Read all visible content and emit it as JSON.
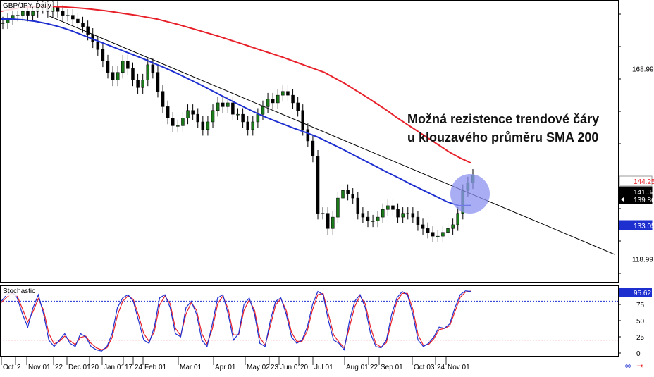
{
  "window": {
    "title": "GBP/JPY, Daily"
  },
  "annotation": {
    "lines": [
      "Možná rezistence trendové čáry",
      "u klouzavého průměru SMA 200"
    ]
  },
  "price_labels": [
    {
      "value": "144.25",
      "color": "#e8202a"
    },
    {
      "value": "141.34",
      "color": "#000000"
    },
    {
      "value": "139.86",
      "color": "#ffffff"
    },
    {
      "value": "133.05",
      "color": "#1e2fd0"
    }
  ],
  "price_axis_ticks": [
    "168.99",
    "118.99"
  ],
  "stoch_panel": {
    "title": "Stochastic",
    "current": "95.62",
    "ticks": [
      "75",
      "50",
      "25",
      "0"
    ]
  },
  "time_axis_labels": [
    "Oct",
    "2",
    "Nov 01",
    "22",
    "Dec 01",
    "20",
    "Jan 01",
    "17",
    "24",
    "Feb 01",
    "Mar 01",
    "Apr 01",
    "May 02",
    "23",
    "Jun 01",
    "20",
    "Jul 01",
    "Aug 01",
    "22",
    "Sep 01",
    "Oct 03",
    "24",
    "Nov 01"
  ],
  "icons": {
    "toolbar_left": "link-icon",
    "toolbar_right": "arrow-icon"
  },
  "colors": {
    "sma200": "#e8202a",
    "sma100": "#1e2fd0",
    "trendline": "#000000",
    "bull": "#1a7a1a",
    "bear": "#000000",
    "highlight": "#8c93f0",
    "stoch_k": "#1e2fd0",
    "stoch_d": "#e8202a"
  },
  "chart_data": [
    {
      "type": "line",
      "title": "GBP/JPY, Daily",
      "y_ticks": [
        168.99,
        118.99
      ],
      "ylim": [
        113,
        187
      ],
      "x_labels": [
        "Oct",
        "2",
        "Nov 01",
        "22",
        "Dec 01",
        "20",
        "Jan 01",
        "17",
        "24",
        "Feb 01",
        "Mar 01",
        "Apr 01",
        "May 02",
        "23",
        "Jun 01",
        "20",
        "Jul 01",
        "Aug 01",
        "22",
        "Sep 01",
        "Oct 03",
        "24",
        "Nov 01"
      ],
      "series": [
        {
          "type": "candlestick",
          "values": [
            181,
            182,
            183,
            183,
            184,
            183,
            184,
            185,
            185,
            184,
            185,
            184,
            183,
            183,
            182,
            181,
            180,
            178,
            176,
            174,
            171,
            168,
            166,
            168,
            171,
            169,
            166,
            164,
            166,
            170,
            168,
            163,
            159,
            156,
            154,
            154,
            156,
            158,
            157,
            155,
            153,
            155,
            158,
            160,
            159,
            160,
            157,
            157,
            155,
            153,
            155,
            157,
            159,
            161,
            160,
            162,
            163,
            162,
            160,
            158,
            153,
            150,
            146,
            131,
            131,
            127,
            130,
            135,
            137,
            136,
            135,
            131,
            130,
            129,
            129,
            130,
            132,
            133,
            132,
            130,
            131,
            131,
            130,
            128,
            127,
            126,
            125,
            125,
            126,
            127,
            128,
            131,
            137,
            139,
            141
          ]
        },
        {
          "name": "SMA 200",
          "type": "line",
          "values": [
            184,
            184.5,
            185,
            185.2,
            185.3,
            185.3,
            185.2,
            185,
            184.8,
            184.5,
            184.2,
            183.8,
            183.4,
            183,
            182.5,
            182,
            181.3,
            180.6,
            179.8,
            179,
            178.2,
            177.4,
            176.5,
            175.6,
            174.7,
            173.8,
            172.9,
            172,
            171,
            170,
            169,
            168,
            166.5,
            165,
            163.3,
            161.6,
            159.8,
            158,
            156,
            154.2,
            152.4,
            150.6,
            148.8,
            147,
            145.5,
            144.25
          ]
        },
        {
          "name": "SMA 100",
          "type": "line",
          "values": [
            182,
            182,
            181.8,
            181.4,
            180.8,
            180,
            179,
            177.8,
            176.6,
            175.4,
            174.2,
            173,
            171.8,
            170.5,
            169.2,
            167.8,
            166.3,
            164.8,
            163.2,
            161.6,
            160,
            158.5,
            157,
            155.7,
            154.5,
            153.3,
            152.2,
            151,
            149.5,
            148,
            146.4,
            144.8,
            143.2,
            141.6,
            140.1,
            138.5,
            137,
            135.5,
            134,
            133,
            133.05
          ]
        },
        {
          "name": "trendline",
          "type": "line",
          "values": [
            185,
            124
          ]
        }
      ]
    },
    {
      "type": "line",
      "title": "Stochastic",
      "y_ticks": [
        75,
        50,
        25,
        0
      ],
      "ylim": [
        0,
        100
      ],
      "levels": [
        80,
        20
      ],
      "series": [
        {
          "name": "%K",
          "values": [
            80,
            90,
            95,
            85,
            60,
            40,
            70,
            90,
            60,
            20,
            10,
            20,
            30,
            15,
            10,
            30,
            25,
            10,
            5,
            3,
            10,
            30,
            70,
            85,
            90,
            80,
            50,
            20,
            15,
            40,
            85,
            90,
            70,
            30,
            25,
            70,
            80,
            60,
            20,
            10,
            45,
            85,
            90,
            60,
            20,
            30,
            75,
            85,
            60,
            15,
            10,
            50,
            80,
            85,
            60,
            25,
            15,
            20,
            40,
            75,
            95,
            90,
            50,
            20,
            15,
            5,
            50,
            80,
            90,
            70,
            30,
            10,
            8,
            20,
            60,
            85,
            95,
            90,
            60,
            20,
            10,
            15,
            25,
            40,
            38,
            45,
            70,
            90,
            96,
            95
          ]
        },
        {
          "name": "%D",
          "values": [
            78,
            86,
            92,
            88,
            68,
            48,
            64,
            84,
            66,
            30,
            14,
            18,
            26,
            19,
            13,
            24,
            26,
            15,
            8,
            5,
            8,
            24,
            58,
            80,
            88,
            83,
            58,
            30,
            18,
            33,
            74,
            88,
            76,
            38,
            27,
            60,
            78,
            66,
            30,
            14,
            37,
            76,
            88,
            68,
            28,
            28,
            66,
            82,
            66,
            24,
            12,
            42,
            74,
            84,
            66,
            32,
            18,
            18,
            34,
            67,
            90,
            92,
            60,
            28,
            17,
            8,
            40,
            72,
            88,
            76,
            40,
            14,
            9,
            16,
            50,
            80,
            92,
            92,
            68,
            28,
            12,
            13,
            22,
            36,
            38,
            42,
            64,
            86,
            94,
            95.62
          ]
        }
      ]
    }
  ]
}
